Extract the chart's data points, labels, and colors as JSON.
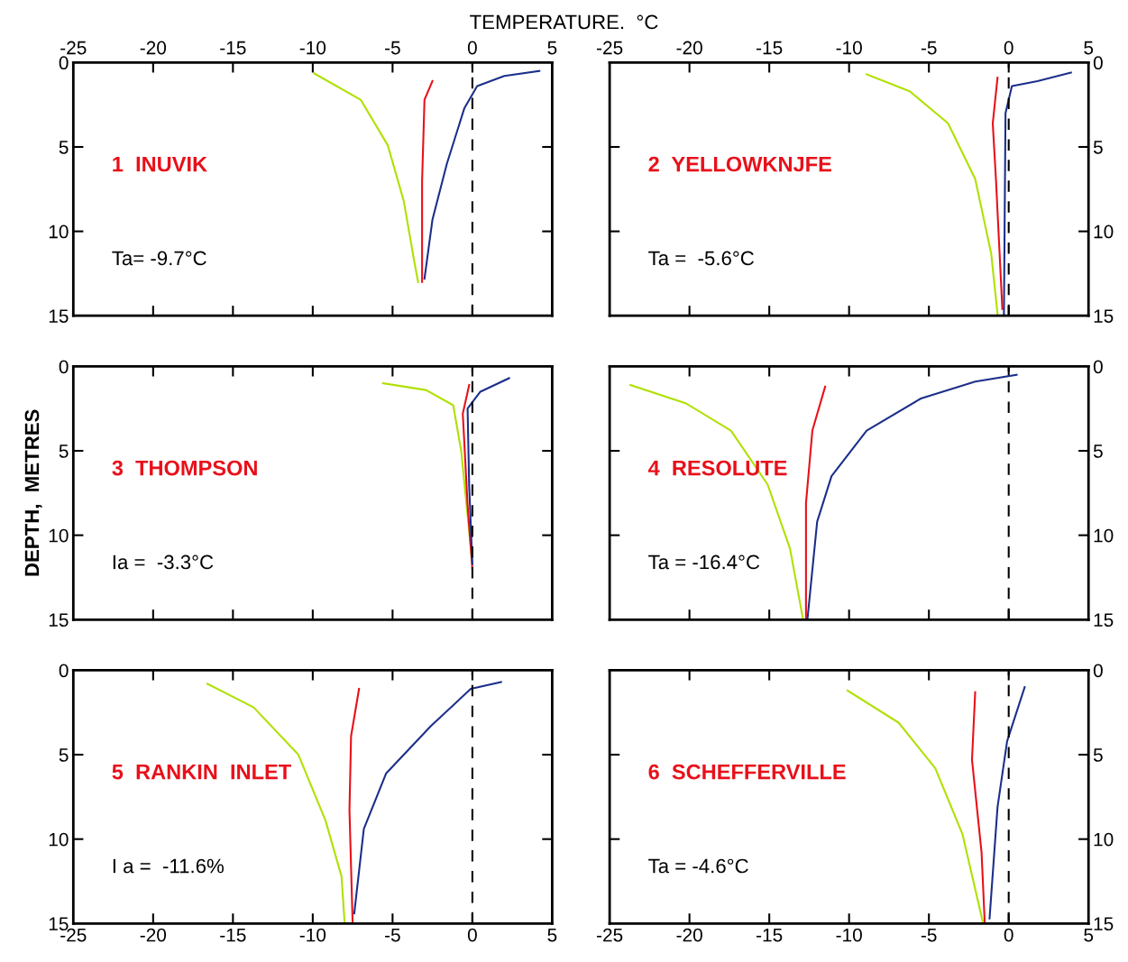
{
  "chart_data": [
    {
      "type": "line",
      "title": "TEMPERATURE.  °C",
      "grid": false,
      "xlim": [
        -25,
        5
      ],
      "xticks": [
        -25,
        -20,
        -15,
        -10,
        -5,
        0,
        5
      ],
      "ylim": [
        15,
        0
      ],
      "yticks": [
        0,
        5,
        10,
        15
      ],
      "annotations": [
        "1  INUVIK",
        "Ta= -9.7°C"
      ],
      "ref_lines": [
        {
          "axis": "x",
          "value": 0,
          "color": "#000000",
          "line_style": "dashed"
        }
      ],
      "series": [
        {
          "color": "#b0e000",
          "x": [
            -9.9,
            -7.0,
            -5.3,
            -4.3,
            -3.6,
            -3.4
          ],
          "values": [
            0.65,
            2.2,
            4.9,
            8.2,
            12,
            13
          ]
        },
        {
          "color": "#e8101a",
          "x": [
            -2.5,
            -3.0,
            -3.15,
            -3.15
          ],
          "values": [
            1.1,
            2.2,
            7,
            13
          ]
        },
        {
          "color": "#1c2f8a",
          "x": [
            4.2,
            2.0,
            0.3,
            -0.5,
            -1.6,
            -2.5,
            -3.0
          ],
          "values": [
            0.5,
            0.8,
            1.4,
            2.7,
            6,
            9.3,
            12.8
          ]
        }
      ]
    },
    {
      "type": "line",
      "xlim": [
        -25,
        5
      ],
      "xticks": [
        -25,
        -20,
        -15,
        -10,
        -5,
        0,
        5
      ],
      "ylim": [
        15,
        0
      ],
      "yticks": [
        0,
        5,
        10,
        15
      ],
      "annotations": [
        "2  YELLOWKNJFE",
        "Ta =  -5.6°C"
      ],
      "ref_lines": [
        {
          "axis": "x",
          "value": 0,
          "color": "#000000",
          "line_style": "dashed"
        }
      ],
      "series": [
        {
          "color": "#b0e000",
          "x": [
            -8.9,
            -6.2,
            -3.8,
            -2.1,
            -1.1,
            -0.7
          ],
          "values": [
            0.7,
            1.7,
            3.6,
            6.9,
            11.3,
            14.9
          ]
        },
        {
          "color": "#e8101a",
          "x": [
            -0.7,
            -1.0,
            -0.8,
            -0.4
          ],
          "values": [
            0.9,
            3.6,
            6.9,
            14.6
          ]
        },
        {
          "color": "#1c2f8a",
          "x": [
            3.9,
            1.8,
            0.2,
            -0.2,
            -0.3
          ],
          "values": [
            0.6,
            1.1,
            1.4,
            3,
            14.9
          ]
        }
      ]
    },
    {
      "type": "line",
      "ylabel": "DEPTH,  METRES",
      "xlim": [
        -25,
        5
      ],
      "xticks": [
        -25,
        -20,
        -15,
        -10,
        -5,
        0,
        5
      ],
      "ylim": [
        15,
        0
      ],
      "yticks": [
        0,
        5,
        10,
        15
      ],
      "tick_labels": "y",
      "annotations": [
        "3  THOMPSON",
        "Ia =  -3.3°C"
      ],
      "ref_lines": [
        {
          "axis": "x",
          "value": 0,
          "color": "#000000",
          "line_style": "dashed"
        }
      ],
      "series": [
        {
          "color": "#b0e000",
          "x": [
            -5.6,
            -2.9,
            -1.2,
            -0.7,
            0
          ],
          "values": [
            1.0,
            1.4,
            2.3,
            5,
            11.7
          ]
        },
        {
          "color": "#e8101a",
          "x": [
            -0.2,
            -0.6,
            -0.3,
            0
          ],
          "values": [
            1.1,
            2.8,
            8.2,
            12
          ]
        },
        {
          "color": "#1c2f8a",
          "x": [
            2.3,
            0.5,
            -0.3,
            -0.2,
            0
          ],
          "values": [
            0.7,
            1.5,
            2.5,
            7.1,
            11.7
          ]
        }
      ]
    },
    {
      "type": "line",
      "xlim": [
        -25,
        5
      ],
      "xticks": [
        -25,
        -20,
        -15,
        -10,
        -5,
        0,
        5
      ],
      "ylim": [
        15,
        0
      ],
      "yticks": [
        0,
        5,
        10,
        15
      ],
      "tick_labels": "y",
      "annotations": [
        "4  RESOLUTE",
        "Ta = -16.4°C"
      ],
      "ref_lines": [
        {
          "axis": "x",
          "value": 0,
          "color": "#000000",
          "line_style": "dashed"
        }
      ],
      "series": [
        {
          "color": "#b0e000",
          "x": [
            -23.7,
            -20.2,
            -17.4,
            -15.1,
            -13.7,
            -12.9
          ],
          "values": [
            1.1,
            2.2,
            3.8,
            7,
            10.8,
            14.9
          ]
        },
        {
          "color": "#e8101a",
          "x": [
            -11.5,
            -12.3,
            -12.7,
            -12.7
          ],
          "values": [
            1.2,
            3.8,
            8.1,
            14.9
          ]
        },
        {
          "color": "#1c2f8a",
          "x": [
            0.5,
            -2.1,
            -5.5,
            -8.9,
            -11.1,
            -12.0,
            -12.6
          ],
          "values": [
            0.5,
            0.9,
            1.9,
            3.8,
            6.5,
            9.2,
            14.9
          ]
        }
      ]
    },
    {
      "type": "line",
      "xlim": [
        -25,
        5
      ],
      "xticks": [
        -25,
        -20,
        -15,
        -10,
        -5,
        0,
        5
      ],
      "ylim": [
        15,
        0
      ],
      "yticks": [
        0,
        5,
        10,
        15
      ],
      "annotations": [
        "5  RANKIN  INLET",
        "I a =  -11.6%"
      ],
      "ref_lines": [
        {
          "axis": "x",
          "value": 0,
          "color": "#000000",
          "line_style": "dashed"
        }
      ],
      "series": [
        {
          "color": "#b0e000",
          "x": [
            -16.6,
            -13.7,
            -10.9,
            -9.2,
            -8.2,
            -8.0
          ],
          "values": [
            0.8,
            2.2,
            5,
            8.9,
            12.2,
            15
          ]
        },
        {
          "color": "#e8101a",
          "x": [
            -7.1,
            -7.6,
            -7.7,
            -7.5
          ],
          "values": [
            1.1,
            3.9,
            8.3,
            15
          ]
        },
        {
          "color": "#1c2f8a",
          "x": [
            1.8,
            -0.1,
            -2.6,
            -5.4,
            -6.8,
            -7.4
          ],
          "values": [
            0.7,
            1.1,
            3.3,
            6.1,
            9.4,
            14.4
          ]
        }
      ]
    },
    {
      "type": "line",
      "xlim": [
        -25,
        5
      ],
      "xticks": [
        -25,
        -20,
        -15,
        -10,
        -5,
        0,
        5
      ],
      "ylim": [
        15,
        0
      ],
      "yticks": [
        0,
        5,
        10,
        15
      ],
      "annotations": [
        "6  SCHEFFERVILLE",
        "Ta = -4.6°C"
      ],
      "ref_lines": [
        {
          "axis": "x",
          "value": 0,
          "color": "#000000",
          "line_style": "dashed"
        }
      ],
      "series": [
        {
          "color": "#b0e000",
          "x": [
            -10.1,
            -6.9,
            -4.6,
            -2.9,
            -1.6
          ],
          "values": [
            1.2,
            3.1,
            5.8,
            9.7,
            15
          ]
        },
        {
          "color": "#e8101a",
          "x": [
            -2.1,
            -2.3,
            -1.7,
            -1.5
          ],
          "values": [
            1.3,
            5.3,
            10.8,
            15
          ]
        },
        {
          "color": "#1c2f8a",
          "x": [
            1.0,
            -0.1,
            -0.7,
            -1.2
          ],
          "values": [
            1.0,
            4.2,
            8.1,
            14.7
          ]
        }
      ]
    }
  ]
}
